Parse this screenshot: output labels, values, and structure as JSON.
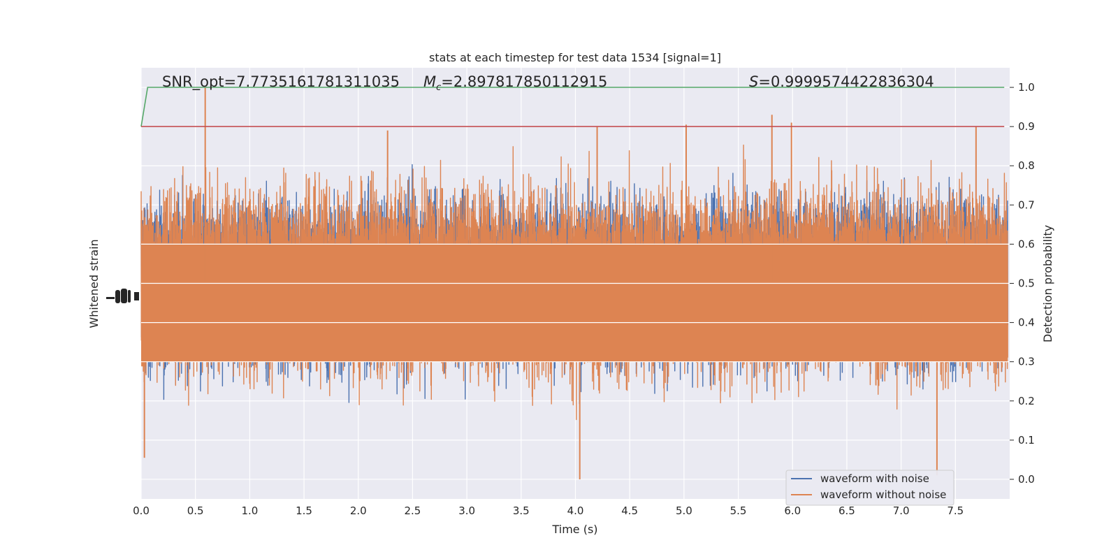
{
  "chart_data": {
    "type": "line",
    "title": "stats at each timestep for test data 1534 [signal=1]",
    "xlabel": "Time (s)",
    "ylabel_left": "Whitened strain",
    "ylabel_right": "Detection probability",
    "xlim": [
      0.0,
      8.0
    ],
    "ylim_right": [
      -0.05,
      1.05
    ],
    "x_ticks": [
      "0.0",
      "0.5",
      "1.0",
      "1.5",
      "2.0",
      "2.5",
      "3.0",
      "3.5",
      "4.0",
      "4.5",
      "5.0",
      "5.5",
      "6.0",
      "6.5",
      "7.0",
      "7.5"
    ],
    "x_tick_values": [
      0.0,
      0.5,
      1.0,
      1.5,
      2.0,
      2.5,
      3.0,
      3.5,
      4.0,
      4.5,
      5.0,
      5.5,
      6.0,
      6.5,
      7.0,
      7.5
    ],
    "y_right_ticks": [
      "0.0",
      "0.1",
      "0.2",
      "0.3",
      "0.4",
      "0.5",
      "0.6",
      "0.7",
      "0.8",
      "0.9",
      "1.0"
    ],
    "y_right_tick_values": [
      0.0,
      0.1,
      0.2,
      0.3,
      0.4,
      0.5,
      0.6,
      0.7,
      0.8,
      0.9,
      1.0
    ],
    "grid": true,
    "legend_position": "lower-right",
    "annotations": {
      "snr": "SNR_opt=7.7735161781311035",
      "mc_symbol": "M",
      "mc_sub": "c",
      "mc_value": "=2.897817850112915",
      "s_symbol": "S",
      "s_value": "=0.9999574422836304"
    },
    "series": [
      {
        "name": "waveform with noise",
        "color": "#4c72b0",
        "style": "dense-oscillation",
        "y_range": [
          0.0,
          1.0
        ]
      },
      {
        "name": "waveform without noise",
        "color": "#dd8452",
        "style": "dense-oscillation",
        "y_range": [
          0.0,
          1.0
        ],
        "peak_values": [
          [
            0.59,
            1.0
          ],
          [
            2.27,
            0.89
          ],
          [
            4.2,
            0.9
          ],
          [
            5.02,
            0.905
          ],
          [
            5.81,
            0.93
          ],
          [
            5.99,
            0.91
          ],
          [
            7.69,
            0.9
          ],
          [
            4.04,
            0.0
          ],
          [
            0.03,
            0.055
          ],
          [
            3.82,
            0.75
          ],
          [
            7.33,
            0.01
          ]
        ]
      },
      {
        "name": "detection probability",
        "color": "#55a868",
        "x": [
          0.0,
          0.06,
          7.95
        ],
        "y": [
          0.9,
          1.0,
          1.0
        ]
      },
      {
        "name": "threshold",
        "color": "#c44e52",
        "x": [
          0.0,
          7.95
        ],
        "y": [
          0.9,
          0.9
        ]
      }
    ],
    "colors": {
      "background": "#eaeaf2",
      "grid": "#ffffff",
      "text": "#262626"
    }
  }
}
